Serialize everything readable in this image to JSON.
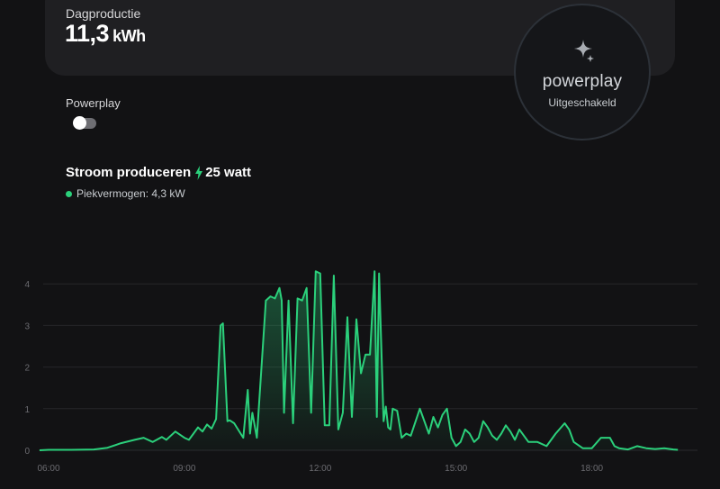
{
  "daily_production": {
    "label": "Dagproductie",
    "value": "11,3",
    "unit": "kWh"
  },
  "powerplay": {
    "toggle_label": "Powerplay",
    "toggle_on": false,
    "badge_brand": "powerplay",
    "badge_status": "Uitgeschakeld",
    "badge_icon": "sparkle-icon"
  },
  "production": {
    "title": "Stroom produceren",
    "current": "25 watt",
    "icon": "bolt-icon",
    "peak_label": "Piekvermogen:",
    "peak_value": "4,3 kW"
  },
  "colors": {
    "accent": "#2bd07b",
    "background": "#121214",
    "card": "#1f1f22"
  },
  "chart_data": {
    "type": "area",
    "title": "",
    "xlabel": "",
    "ylabel": "",
    "ylim": [
      0,
      4.5
    ],
    "yticks": [
      0,
      1,
      2,
      3,
      4
    ],
    "xticks": [
      "06:00",
      "09:00",
      "12:00",
      "15:00",
      "18:00"
    ],
    "xrange_hours": [
      6,
      20
    ],
    "grid": true,
    "series": [
      {
        "x": [
          5.8,
          6.0,
          6.5,
          7.0,
          7.3,
          7.6,
          7.9,
          8.1,
          8.3,
          8.5,
          8.6,
          8.8,
          9.0,
          9.1,
          9.2,
          9.3,
          9.4,
          9.5,
          9.6,
          9.7,
          9.8,
          9.85,
          9.95,
          10.0,
          10.1,
          10.3,
          10.4,
          10.45,
          10.5,
          10.6,
          10.8,
          10.9,
          11.0,
          11.1,
          11.15,
          11.2,
          11.3,
          11.4,
          11.5,
          11.6,
          11.7,
          11.8,
          11.9,
          12.0,
          12.1,
          12.2,
          12.3,
          12.4,
          12.5,
          12.6,
          12.7,
          12.8,
          12.9,
          13.0,
          13.1,
          13.2,
          13.25,
          13.3,
          13.4,
          13.45,
          13.5,
          13.55,
          13.6,
          13.7,
          13.8,
          13.9,
          14.0,
          14.2,
          14.4,
          14.5,
          14.6,
          14.7,
          14.8,
          14.9,
          15.0,
          15.1,
          15.2,
          15.3,
          15.4,
          15.5,
          15.6,
          15.7,
          15.8,
          15.9,
          16.0,
          16.1,
          16.2,
          16.3,
          16.4,
          16.5,
          16.6,
          16.8,
          17.0,
          17.2,
          17.4,
          17.5,
          17.6,
          17.8,
          18.0,
          18.2,
          18.4,
          18.5,
          18.6,
          18.8,
          19.0,
          19.2,
          19.4,
          19.6,
          19.8,
          19.9
        ],
        "values": [
          0.0,
          0.01,
          0.01,
          0.02,
          0.06,
          0.17,
          0.25,
          0.3,
          0.2,
          0.32,
          0.25,
          0.45,
          0.3,
          0.25,
          0.4,
          0.55,
          0.45,
          0.62,
          0.52,
          0.75,
          3.0,
          3.05,
          0.7,
          0.72,
          0.65,
          0.3,
          1.45,
          0.4,
          0.9,
          0.3,
          3.6,
          3.7,
          3.65,
          3.9,
          3.6,
          0.9,
          3.6,
          0.65,
          3.65,
          3.6,
          3.9,
          0.9,
          4.3,
          4.25,
          0.6,
          0.6,
          4.2,
          0.5,
          0.9,
          3.2,
          0.8,
          3.15,
          1.85,
          2.3,
          2.3,
          4.3,
          0.8,
          4.25,
          0.7,
          1.05,
          0.55,
          0.5,
          1.0,
          0.95,
          0.3,
          0.4,
          0.35,
          1.0,
          0.4,
          0.8,
          0.55,
          0.85,
          1.0,
          0.3,
          0.1,
          0.2,
          0.5,
          0.4,
          0.2,
          0.3,
          0.7,
          0.55,
          0.35,
          0.25,
          0.4,
          0.6,
          0.45,
          0.25,
          0.5,
          0.35,
          0.2,
          0.2,
          0.1,
          0.4,
          0.65,
          0.5,
          0.2,
          0.05,
          0.05,
          0.3,
          0.3,
          0.1,
          0.05,
          0.02,
          0.1,
          0.05,
          0.03,
          0.05,
          0.02,
          0.01
        ]
      }
    ]
  }
}
